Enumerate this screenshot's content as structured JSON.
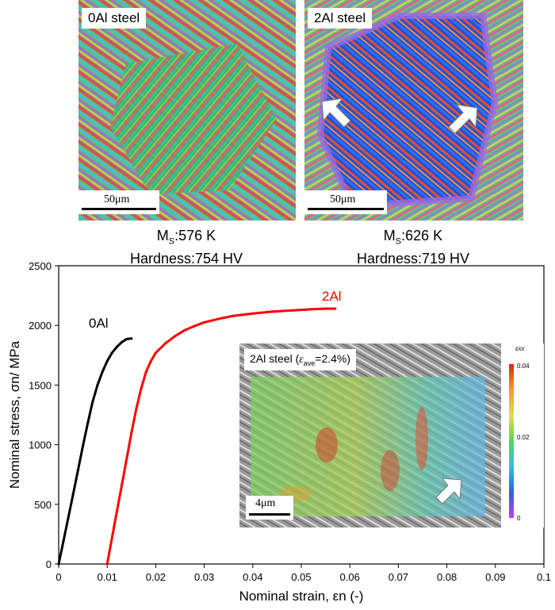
{
  "panels": [
    {
      "label": "0Al steel",
      "scalebar": "50μm",
      "ms_label": "M",
      "ms_sub": "S",
      "ms_value": ":576 K",
      "hardness": "Hardness:754 HV"
    },
    {
      "label": "2Al steel",
      "scalebar": "50μm",
      "ms_label": "M",
      "ms_sub": "S",
      "ms_value": ":626 K",
      "hardness": "Hardness:719 HV"
    }
  ],
  "inset": {
    "label_prefix": "2Al steel (",
    "label_eps": "ε",
    "label_sub": "ave",
    "label_suffix": "=2.4%)",
    "scalebar": "4μm",
    "colorbar_title": "εxx",
    "colorbar_ticks": [
      "0.04",
      "0.02",
      "0"
    ]
  },
  "chart_data": {
    "type": "line",
    "xlabel": "Nominal strain, εn (-)",
    "ylabel": "Nominal stress, σn/ MPa",
    "xlim": [
      0,
      0.1
    ],
    "ylim": [
      0,
      2500
    ],
    "xticks": [
      "0",
      "0.01",
      "0.02",
      "0.03",
      "0.04",
      "0.05",
      "0.06",
      "0.07",
      "0.08",
      "0.09",
      "0.1"
    ],
    "yticks": [
      "0",
      "500",
      "1000",
      "1500",
      "2000",
      "2500"
    ],
    "grid": false,
    "series": [
      {
        "name": "0Al",
        "color": "#000000",
        "x": [
          0,
          0.001,
          0.002,
          0.003,
          0.004,
          0.005,
          0.006,
          0.007,
          0.008,
          0.009,
          0.01,
          0.011,
          0.012,
          0.013,
          0.014,
          0.015
        ],
        "y": [
          0,
          195,
          390,
          590,
          790,
          990,
          1180,
          1360,
          1500,
          1610,
          1700,
          1770,
          1820,
          1860,
          1885,
          1890
        ]
      },
      {
        "name": "2Al",
        "color": "#ff0000",
        "x": [
          0.01,
          0.011,
          0.012,
          0.013,
          0.014,
          0.015,
          0.016,
          0.017,
          0.018,
          0.019,
          0.02,
          0.022,
          0.024,
          0.026,
          0.028,
          0.03,
          0.033,
          0.036,
          0.04,
          0.044,
          0.048,
          0.052,
          0.055,
          0.057
        ],
        "y": [
          0,
          220,
          440,
          660,
          880,
          1100,
          1300,
          1470,
          1610,
          1700,
          1770,
          1850,
          1910,
          1960,
          1995,
          2025,
          2055,
          2080,
          2100,
          2115,
          2125,
          2135,
          2140,
          2140
        ]
      }
    ]
  }
}
